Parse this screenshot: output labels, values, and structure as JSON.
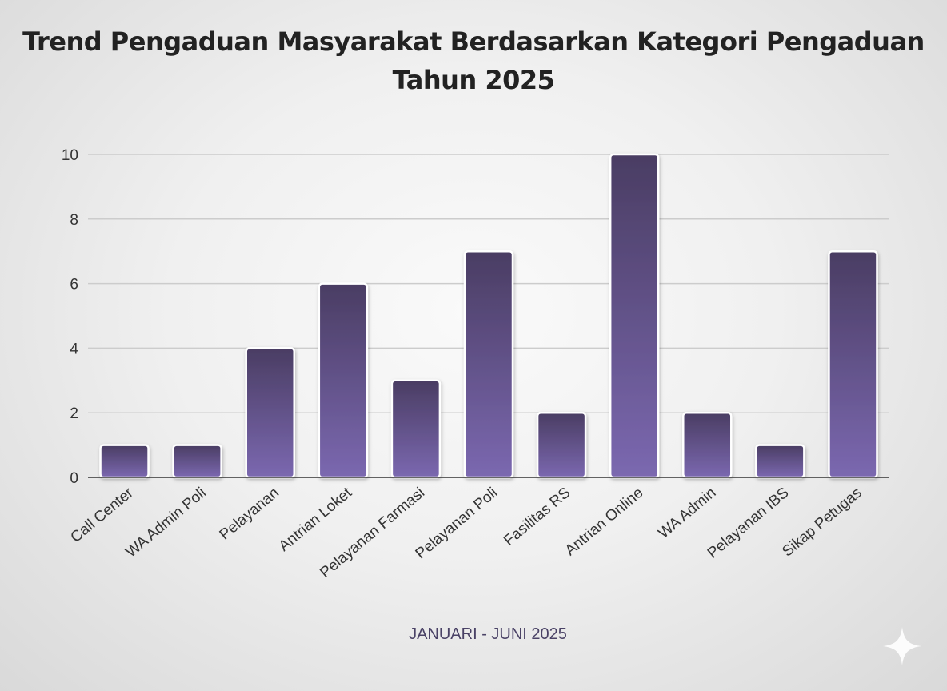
{
  "chart_data": {
    "type": "bar",
    "title": "Trend Pengaduan Masyarakat Berdasarkan Kategori Pengaduan",
    "subtitle": "Tahun 2025",
    "xlabel": "JANUARI - JUNI 2025",
    "ylabel": "",
    "categories": [
      "Call Center",
      "WA Admin Poli",
      "Pelayanan",
      "Antrian Loket",
      "Pelayanan Farmasi",
      "Pelayanan Poli",
      "Fasilitas RS",
      "Antrian Online",
      "WA Admin",
      "Pelayanan IBS",
      "Sikap Petugas"
    ],
    "values": [
      1,
      1,
      4,
      6,
      3,
      7,
      2,
      10,
      2,
      1,
      7
    ],
    "ylim": [
      0,
      10
    ],
    "yticks": [
      "0",
      "2",
      "4",
      "6",
      "8",
      "10"
    ],
    "grid": true,
    "legend": "none",
    "colors": {
      "bar_top": "#4a3d63",
      "bar_bottom": "#7b68b0",
      "grid": "#cccccc",
      "axis": "#333333"
    }
  },
  "watermark_icon": "sparkle-icon"
}
